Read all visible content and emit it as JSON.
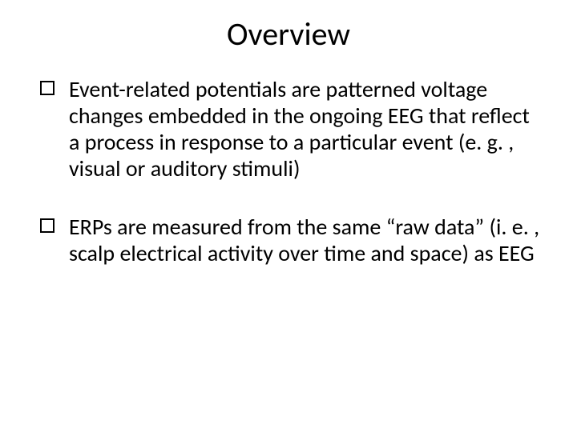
{
  "slide": {
    "title": "Overview",
    "title_fontsize": 40,
    "title_align": "center",
    "background_color": "#ffffff",
    "text_color": "#000000",
    "font_family": "Calibri",
    "bullets": [
      {
        "text": "Event-related potentials are patterned voltage changes embedded in the ongoing EEG that reflect a process in response to a particular event (e. g. , visual or auditory stimuli)",
        "marker": "hollow-square"
      },
      {
        "text": "ERPs are measured from the same “raw data” (i. e. , scalp electrical activity over time and space) as EEG",
        "marker": "hollow-square"
      }
    ],
    "bullet_fontsize": 28,
    "bullet_marker_color": "#000000",
    "bullet_marker_size": 18,
    "bullet_marker_border": 2
  }
}
